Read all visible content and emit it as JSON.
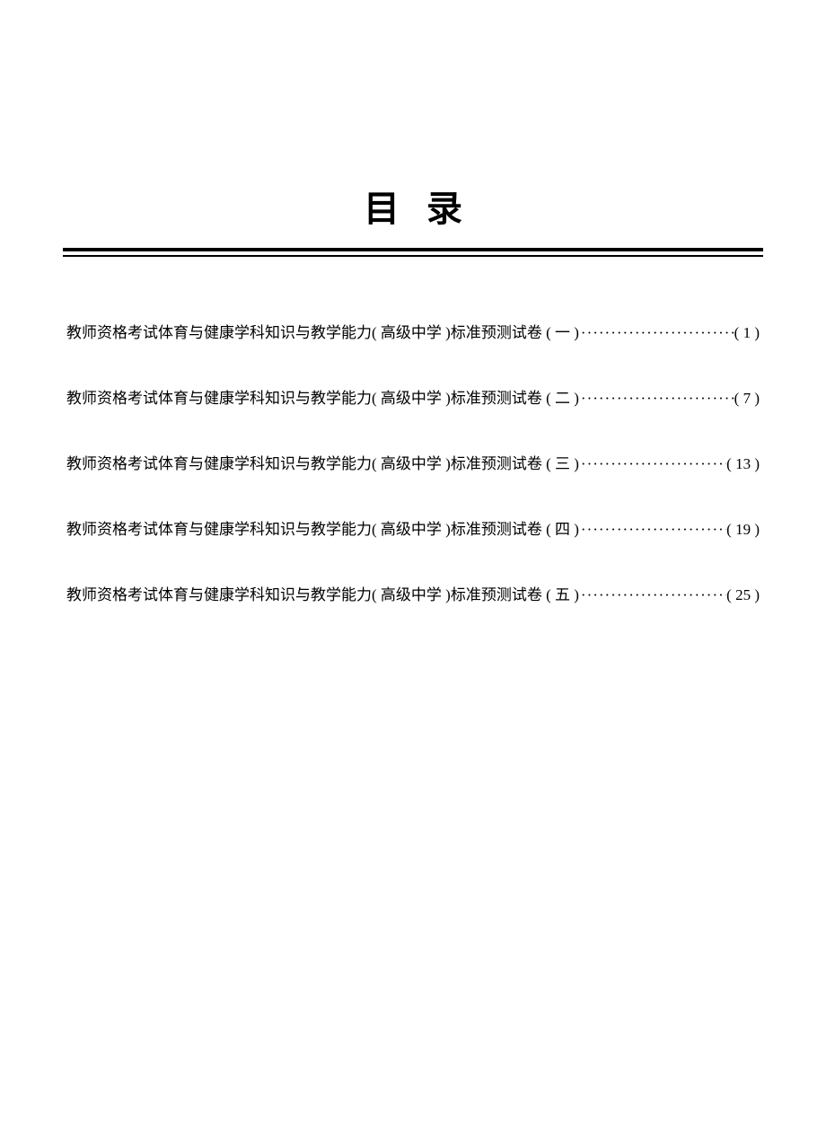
{
  "title": "目录",
  "entries": [
    {
      "text": "教师资格考试体育与健康学科知识与教学能力( 高级中学 )标准预测试卷 ( 一 )",
      "page": "( 1 )"
    },
    {
      "text": "教师资格考试体育与健康学科知识与教学能力( 高级中学 )标准预测试卷 ( 二 )",
      "page": "( 7 )"
    },
    {
      "text": "教师资格考试体育与健康学科知识与教学能力( 高级中学 )标准预测试卷 ( 三 )",
      "page": "( 13 )"
    },
    {
      "text": "教师资格考试体育与健康学科知识与教学能力( 高级中学 )标准预测试卷 ( 四 )",
      "page": "( 19 )"
    },
    {
      "text": "教师资格考试体育与健康学科知识与教学能力( 高级中学 )标准预测试卷 ( 五 )",
      "page": "( 25 )"
    }
  ],
  "colors": {
    "background": "#ffffff",
    "text": "#000000",
    "rule": "#000000"
  },
  "typography": {
    "title_fontsize": 40,
    "title_weight": "bold",
    "entry_fontsize": 17,
    "font_family": "SimSun"
  }
}
